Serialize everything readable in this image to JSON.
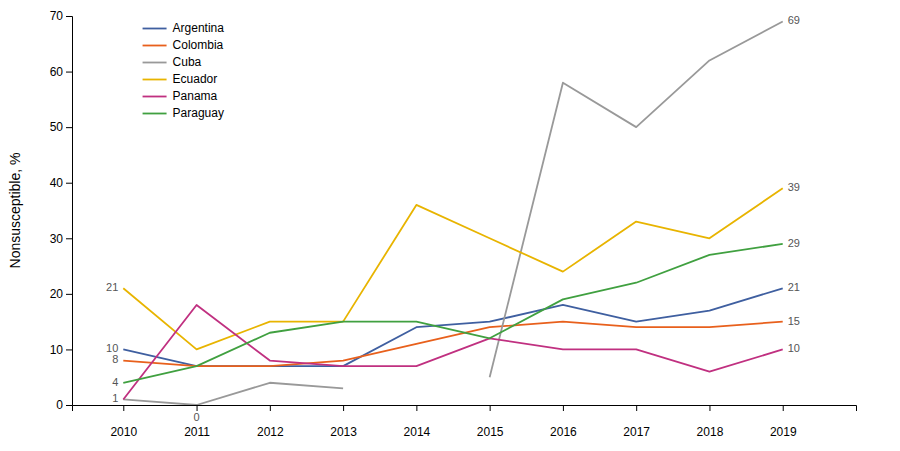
{
  "chart_data": {
    "type": "line",
    "x": [
      2010,
      2011,
      2012,
      2013,
      2014,
      2015,
      2016,
      2017,
      2018,
      2019
    ],
    "series": [
      {
        "name": "Argentina",
        "color": "#3f5fa0",
        "values": [
          10,
          7,
          7,
          7,
          14,
          15,
          18,
          15,
          17,
          21
        ]
      },
      {
        "name": "Colombia",
        "color": "#e8601c",
        "values": [
          8,
          7,
          7,
          8,
          11,
          14,
          15,
          14,
          14,
          15
        ]
      },
      {
        "name": "Cuba",
        "color": "#999999",
        "values": [
          1,
          0,
          4,
          3,
          null,
          5,
          58,
          50,
          62,
          69
        ]
      },
      {
        "name": "Ecuador",
        "color": "#e8b400",
        "values": [
          21,
          10,
          15,
          15,
          36,
          30,
          24,
          33,
          30,
          39
        ]
      },
      {
        "name": "Panama",
        "color": "#c03080",
        "values": [
          1,
          18,
          8,
          7,
          7,
          12,
          10,
          10,
          6,
          10
        ]
      },
      {
        "name": "Paraguay",
        "color": "#40a040",
        "values": [
          4,
          7,
          13,
          15,
          15,
          12,
          19,
          22,
          27,
          29
        ]
      }
    ],
    "ylabel": "Nonsusceptible, %",
    "xlim": [
      2009.3,
      2020.0
    ],
    "xticks": [
      2010,
      2011,
      2012,
      2013,
      2014,
      2015,
      2016,
      2017,
      2018,
      2019
    ],
    "ylim": [
      0,
      70
    ],
    "yticks": [
      0,
      10,
      20,
      30,
      40,
      50,
      60,
      70
    ],
    "grid": false,
    "legend": "upper left",
    "annotations": [
      {
        "text": "21",
        "x": 2010,
        "y": 21
      },
      {
        "text": "10",
        "x": 2010,
        "y": 10
      },
      {
        "text": "8",
        "x": 2010,
        "y": 8
      },
      {
        "text": "4",
        "x": 2010,
        "y": 4
      },
      {
        "text": "1",
        "x": 2010,
        "y": 1
      },
      {
        "text": "0",
        "x": 2011,
        "y": 0
      },
      {
        "text": "69",
        "x": 2019,
        "y": 69
      },
      {
        "text": "39",
        "x": 2019,
        "y": 39
      },
      {
        "text": "29",
        "x": 2019,
        "y": 29
      },
      {
        "text": "21",
        "x": 2019,
        "y": 21
      },
      {
        "text": "15",
        "x": 2019,
        "y": 15
      },
      {
        "text": "10",
        "x": 2019,
        "y": 10
      }
    ]
  }
}
